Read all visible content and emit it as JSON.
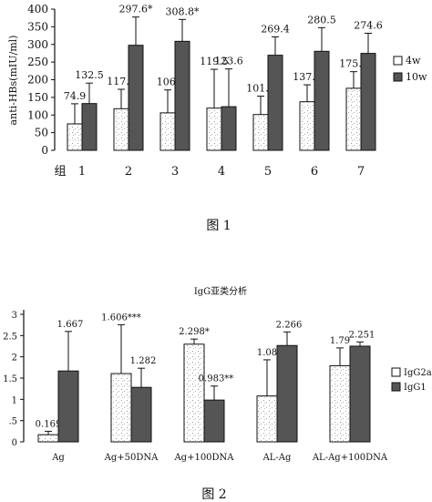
{
  "chart_data": [
    {
      "type": "bar",
      "figure_caption": "图 1",
      "xlabel": "组",
      "ylabel": "anti-HBs(mIU/ml)",
      "ylim": [
        0,
        400
      ],
      "yticks": [
        "0",
        "50",
        "100",
        "150",
        "200",
        "250",
        "300",
        "350",
        "400"
      ],
      "categories": [
        "1",
        "2",
        "3",
        "4",
        "5",
        "6",
        "7"
      ],
      "legend_position": "right",
      "series": [
        {
          "name": "4w",
          "color": "#ffffff",
          "values": [
            74.9,
            117.9,
            106.1,
            119.5,
            101.4,
            137.6,
            175.8
          ],
          "error": [
            57,
            55,
            65,
            110,
            52,
            48,
            47
          ],
          "labels": [
            "74.9",
            "117.9",
            "106.",
            "119.5",
            "101.4",
            "137.6",
            "175.8"
          ]
        },
        {
          "name": "10w",
          "color": "#555555",
          "values": [
            132.5,
            297.6,
            308.8,
            123.6,
            269.4,
            280.5,
            274.6
          ],
          "error": [
            58,
            80,
            62,
            107,
            52,
            67,
            57
          ],
          "labels": [
            "132.5",
            "297.6*",
            "308.8*",
            "123.6",
            "269.4",
            "280.5",
            "274.6"
          ]
        }
      ]
    },
    {
      "type": "bar",
      "title": "IgG亚类分析",
      "figure_caption": "图 2",
      "ylim": [
        0,
        3
      ],
      "yticks": [
        "0",
        ".5",
        "1",
        "1.5",
        "2",
        "2.5",
        "3"
      ],
      "categories": [
        "Ag",
        "Ag+50DNA",
        "Ag+100DNA",
        "AL-Ag",
        "AL-Ag+100DNA"
      ],
      "legend_position": "right",
      "series": [
        {
          "name": "IgG2a",
          "color": "#ffffff",
          "values": [
            0.169,
            1.606,
            2.298,
            1.08,
            1.79
          ],
          "error": [
            0.08,
            1.15,
            0.12,
            0.85,
            0.42
          ],
          "labels": [
            "0.169",
            "1.606***",
            "2.298*",
            "1.08",
            "1.79"
          ]
        },
        {
          "name": "IgG1",
          "color": "#555555",
          "values": [
            1.667,
            1.282,
            0.983,
            2.266,
            2.251
          ],
          "error": [
            0.93,
            0.45,
            0.33,
            0.32,
            0.1
          ],
          "labels": [
            "1.667",
            "1.282",
            "0.983**",
            "2.266",
            "2.251"
          ]
        }
      ]
    }
  ]
}
